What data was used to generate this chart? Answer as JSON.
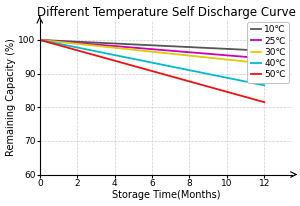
{
  "title": "Different Temperature Self Discharge Curve",
  "xlabel": "Storage Time(Months)",
  "ylabel": "Remaining Capacity (%)",
  "xlim": [
    0,
    13.5
  ],
  "ylim": [
    60,
    106
  ],
  "xticks": [
    0,
    2,
    4,
    6,
    8,
    10,
    12
  ],
  "yticks": [
    60,
    70,
    80,
    90,
    100
  ],
  "series": [
    {
      "label": "10℃",
      "color": "#555555",
      "x": [
        0,
        12
      ],
      "y": [
        100,
        96.8
      ]
    },
    {
      "label": "25℃",
      "color": "#cc00bb",
      "x": [
        0,
        12
      ],
      "y": [
        100,
        94.5
      ]
    },
    {
      "label": "30℃",
      "color": "#ddcc00",
      "x": [
        0,
        12
      ],
      "y": [
        100,
        93.0
      ]
    },
    {
      "label": "40℃",
      "color": "#00bbcc",
      "x": [
        0,
        12
      ],
      "y": [
        100,
        86.5
      ]
    },
    {
      "label": "50℃",
      "color": "#ee1111",
      "x": [
        0,
        12
      ],
      "y": [
        100,
        81.5
      ]
    }
  ],
  "grid_color": "#cccccc",
  "background_color": "#ffffff",
  "title_fontsize": 8.5,
  "label_fontsize": 7,
  "tick_fontsize": 6.5,
  "legend_fontsize": 6.5,
  "linewidth": 1.3
}
